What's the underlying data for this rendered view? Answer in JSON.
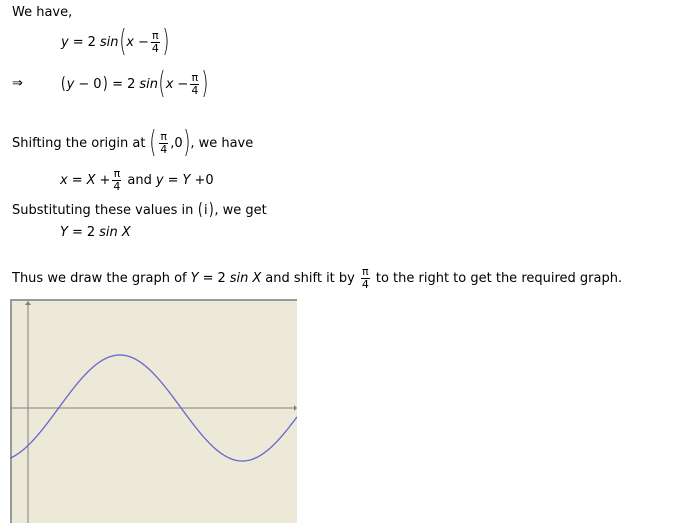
{
  "lines": {
    "we_have": "We have,",
    "eq1": {
      "lhs": "y",
      "eq": "=",
      "coef": "2",
      "func": "sin",
      "var": "x",
      "minus": "−",
      "num": "π",
      "den": "4"
    },
    "implies": "⇒",
    "eq2": {
      "lhs_var": "y",
      "lhs_minus": "−",
      "lhs_zero": "0",
      "eq": "=",
      "coef": "2",
      "func": "sin",
      "var": "x",
      "minus": "−",
      "num": "π",
      "den": "4"
    },
    "shift": {
      "before": "Shifting the origin at",
      "num": "π",
      "den": "4",
      "comma_zero": ",0",
      "after": ", we have"
    },
    "sub_eq": {
      "x": "x",
      "eq": "=",
      "X": "X",
      "plus": "+",
      "num": "π",
      "den": "4",
      "and": "and",
      "y": "y",
      "eq2": "=",
      "Y": "Y",
      "plus2": "+",
      "zero": "0"
    },
    "substituting": {
      "text": "Substituting these values in",
      "ref": "i",
      "after": ", we get"
    },
    "result": {
      "Y": "Y",
      "eq": "=",
      "coef": "2",
      "func": "sin",
      "X": "X"
    },
    "thus": {
      "before": "Thus we draw the graph of",
      "Y": "Y",
      "eq": "=",
      "coef": "2",
      "func": "sin",
      "X": "X",
      "middle": "and shift it by",
      "num": "π",
      "den": "4",
      "after": "to the right to get the required graph."
    }
  },
  "graph": {
    "type": "line",
    "function": "y = 2 sin(x - π/4)",
    "background": "#ece9d8",
    "curve_color": "#6666cc",
    "axis_color": "#808080",
    "border_color": "#999999",
    "x_range": [
      -0.4,
      6.9
    ],
    "y_range": [
      -2.6,
      2.6
    ]
  }
}
